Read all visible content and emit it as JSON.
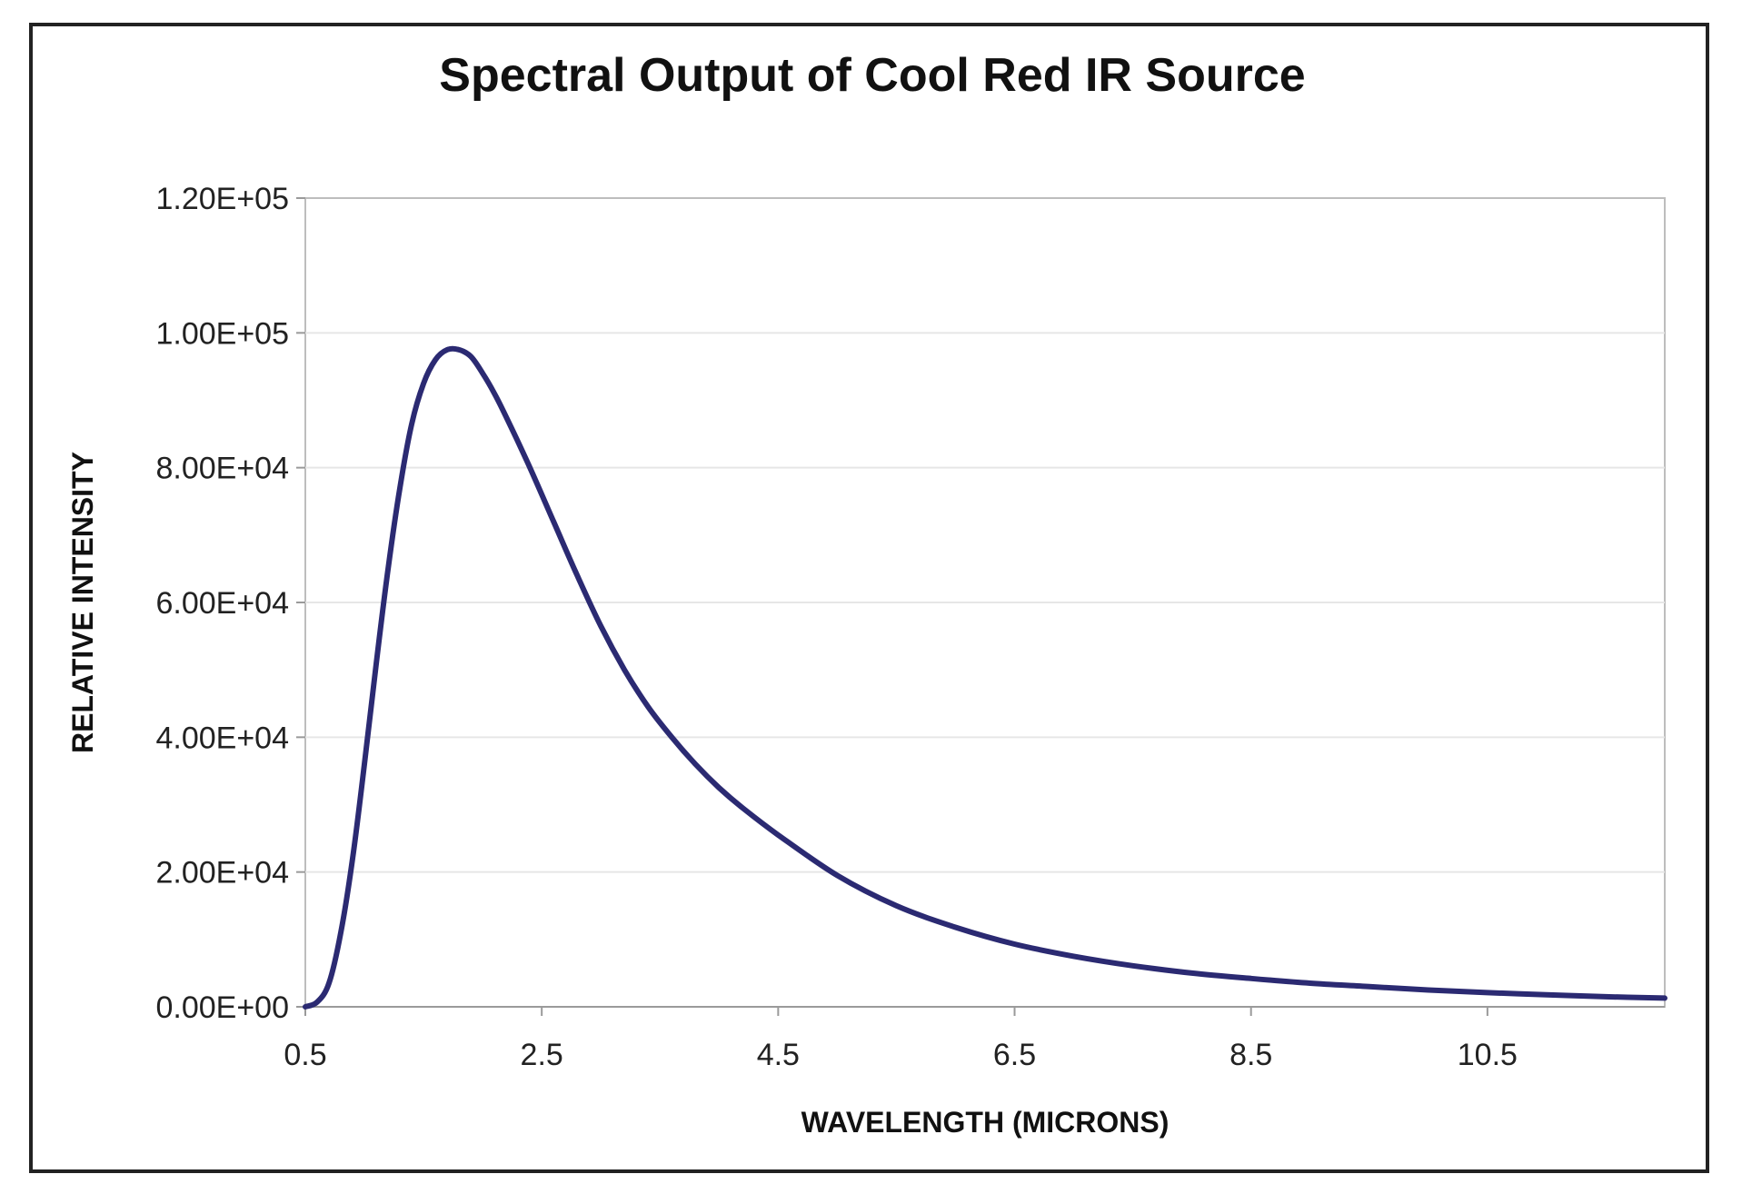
{
  "chart_data": {
    "type": "line",
    "title": "Spectral Output of Cool Red IR Source",
    "xlabel": "WAVELENGTH (MICRONS)",
    "ylabel": "RELATIVE INTENSITY",
    "xlim": [
      0.5,
      12
    ],
    "ylim": [
      0,
      120000
    ],
    "x_ticks": [
      0.5,
      2.5,
      4.5,
      6.5,
      8.5,
      10.5
    ],
    "x_tick_labels": [
      "0.5",
      "2.5",
      "4.5",
      "6.5",
      "8.5",
      "10.5"
    ],
    "y_ticks": [
      0,
      20000,
      40000,
      60000,
      80000,
      100000,
      120000
    ],
    "y_tick_labels": [
      "0.00E+00",
      "2.00E+04",
      "4.00E+04",
      "6.00E+04",
      "8.00E+04",
      "1.00E+05",
      "1.20E+05"
    ],
    "grid": "horizontal",
    "series": [
      {
        "name": "Spectral Output",
        "color": "#2b2a72",
        "x": [
          0.5,
          0.6,
          0.7,
          0.8,
          0.9,
          1.0,
          1.1,
          1.2,
          1.3,
          1.4,
          1.5,
          1.6,
          1.7,
          1.8,
          1.9,
          2.0,
          2.1,
          2.2,
          2.4,
          2.6,
          2.8,
          3.0,
          3.2,
          3.4,
          3.6,
          3.8,
          4.0,
          4.2,
          4.5,
          5.0,
          5.5,
          6.0,
          6.5,
          7.0,
          7.5,
          8.0,
          8.5,
          9.0,
          9.5,
          10.0,
          10.5,
          11.0,
          11.5,
          12.0
        ],
        "values": [
          0,
          700,
          3500,
          11000,
          22000,
          36000,
          51000,
          65000,
          77000,
          86500,
          92500,
          96000,
          97500,
          97500,
          96500,
          94000,
          91000,
          87500,
          80000,
          72000,
          64000,
          56500,
          50000,
          44500,
          40000,
          36000,
          32500,
          29500,
          25500,
          19500,
          15000,
          11800,
          9300,
          7500,
          6100,
          5000,
          4200,
          3500,
          3000,
          2500,
          2100,
          1800,
          1500,
          1300
        ]
      }
    ]
  }
}
